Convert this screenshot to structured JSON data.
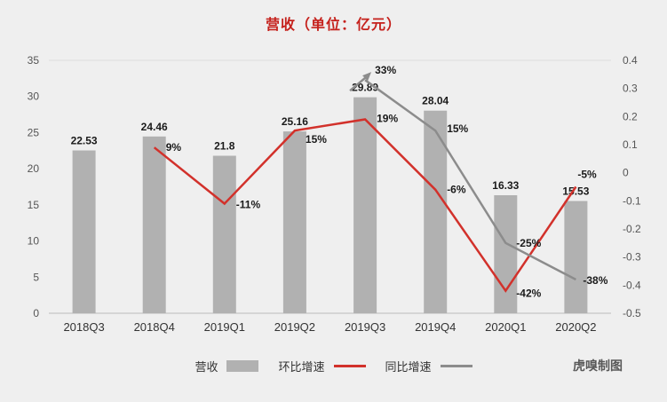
{
  "chart_data": {
    "type": "bar+line",
    "title": "营收（单位：亿元）",
    "categories": [
      "2018Q3",
      "2018Q4",
      "2019Q1",
      "2019Q2",
      "2019Q3",
      "2019Q4",
      "2020Q1",
      "2020Q2"
    ],
    "bars": {
      "name": "营收",
      "values": [
        22.53,
        24.46,
        21.8,
        25.16,
        29.89,
        28.04,
        16.33,
        15.53
      ],
      "labels": [
        "22.53",
        "24.46",
        "21.8",
        "25.16",
        "29.89",
        "28.04",
        "16.33",
        "15.53"
      ]
    },
    "left_axis": {
      "min": 0,
      "max": 35,
      "ticks": [
        "35",
        "30",
        "25",
        "20",
        "15",
        "10",
        "5",
        "0"
      ]
    },
    "right_axis": {
      "min": -0.5,
      "max": 0.4,
      "ticks": [
        "0.4",
        "0.3",
        "0.2",
        "0.1",
        "0",
        "-0.1",
        "-0.2",
        "-0.3",
        "-0.4",
        "-0.5"
      ]
    },
    "series": [
      {
        "name": "环比增速",
        "color": "#d2312b",
        "start_arrow": false,
        "points": [
          {
            "i": 1,
            "v": 0.09,
            "label": "9%",
            "dx": 13,
            "dy": 4
          },
          {
            "i": 2,
            "v": -0.11,
            "label": "-11%",
            "dx": 13,
            "dy": 5
          },
          {
            "i": 3,
            "v": 0.15,
            "label": "15%",
            "dx": 12,
            "dy": 14
          },
          {
            "i": 4,
            "v": 0.19,
            "label": "19%",
            "dx": 13,
            "dy": 3
          },
          {
            "i": 5,
            "v": -0.06,
            "label": "-6%",
            "dx": 13,
            "dy": 4
          },
          {
            "i": 6,
            "v": -0.42,
            "label": "-42%",
            "dx": 12,
            "dy": 7
          },
          {
            "i": 7,
            "v": -0.05,
            "label": "-5%",
            "dx": 2,
            "dy": -10
          }
        ]
      },
      {
        "name": "同比增速",
        "color": "#8c8c8c",
        "start_arrow": true,
        "points": [
          {
            "i": 4,
            "v": 0.33,
            "label": "33%",
            "dx": 11,
            "dy": -7
          },
          {
            "i": 5,
            "v": 0.15,
            "label": "15%",
            "dx": 13,
            "dy": 2
          },
          {
            "i": 6,
            "v": -0.25,
            "label": "-25%",
            "dx": 12,
            "dy": 4
          },
          {
            "i": 7,
            "v": -0.38,
            "label": "-38%",
            "dx": 8,
            "dy": 5
          }
        ]
      }
    ],
    "legend": [
      {
        "label": "营收",
        "swatch": "bar"
      },
      {
        "label": "环比增速",
        "swatch": "line-red"
      },
      {
        "label": "同比增速",
        "swatch": "line-gray"
      }
    ],
    "credit": "虎嗅制图",
    "colors": {
      "background": "#efefef",
      "bar": "#b1b1b1",
      "qoq_line": "#d2312b",
      "yoy_line": "#8c8c8c",
      "title": "#c5211c"
    }
  }
}
